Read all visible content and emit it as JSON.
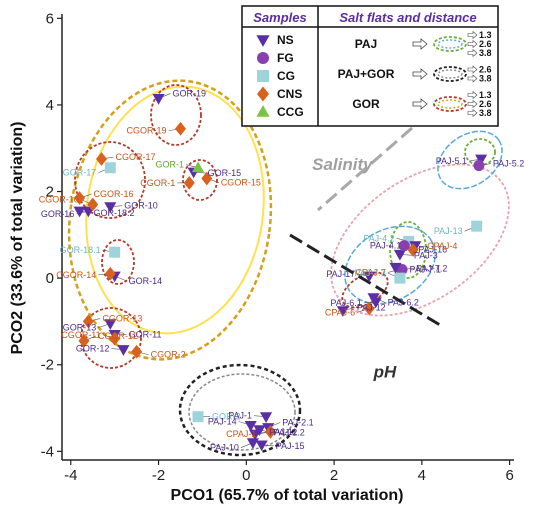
{
  "chart_data": {
    "type": "scatter",
    "xlabel": "PCO1 (65.7% of total variation)",
    "ylabel": "PCO2 (33.6% of total variation)",
    "xlim": [
      -4.2,
      6.1
    ],
    "ylim": [
      -4.2,
      6.1
    ],
    "xticks": [
      -4,
      -2,
      0,
      2,
      4,
      6
    ],
    "yticks": [
      -4,
      -2,
      0,
      2,
      4,
      6
    ],
    "xtick_labels": [
      "-4",
      "-2",
      "0",
      "2",
      "4",
      "6"
    ],
    "ytick_labels": [
      "-4",
      "-2",
      "0",
      "2",
      "4",
      "6"
    ],
    "grid": false,
    "legend": {
      "samples_title": "Samples",
      "groups_title": "Salt flats and distance",
      "samples": [
        {
          "code": "NS",
          "shape": "triangle-down",
          "color": "#5a2fa6"
        },
        {
          "code": "FG",
          "shape": "circle",
          "color": "#8a3fb0"
        },
        {
          "code": "CG",
          "shape": "square",
          "color": "#9fd3dc"
        },
        {
          "code": "CNS",
          "shape": "diamond",
          "color": "#d8611e"
        },
        {
          "code": "CCG",
          "shape": "triangle-up",
          "color": "#7cc341"
        }
      ],
      "groups": [
        {
          "name": "PAJ",
          "distances": [
            "1.3",
            "2.6",
            "3.8"
          ]
        },
        {
          "name": "PAJ+GOR",
          "distances": [
            "2.6",
            "3.8"
          ]
        },
        {
          "name": "GOR",
          "distances": [
            "1.3",
            "2.6",
            "3.8"
          ]
        }
      ]
    },
    "annotations": [
      {
        "text": "Salinity",
        "x": 1.5,
        "y": 2.5,
        "color": "#a0a0a0"
      },
      {
        "text": "pH",
        "x": 2.9,
        "y": -2.3,
        "color": "#333333"
      }
    ],
    "points": [
      {
        "label": "GOR-19",
        "x": -2.0,
        "y": 4.15,
        "shape": "triangle-down",
        "color": "#5a2fa6"
      },
      {
        "label": "CGOR-19",
        "x": -1.5,
        "y": 3.45,
        "shape": "diamond",
        "color": "#d8611e"
      },
      {
        "label": "CGOR-17",
        "x": -3.3,
        "y": 2.75,
        "shape": "diamond",
        "color": "#d8611e"
      },
      {
        "label": "GOR-17",
        "x": -3.1,
        "y": 2.55,
        "shape": "square",
        "color": "#9fd3dc"
      },
      {
        "label": "GOR-15",
        "x": -1.2,
        "y": 2.45,
        "shape": "triangle-down",
        "color": "#5a2fa6"
      },
      {
        "label": "GOR-1",
        "x": -1.1,
        "y": 2.55,
        "shape": "triangle-up",
        "color": "#7cc341"
      },
      {
        "label": "CGOR-15",
        "x": -0.9,
        "y": 2.3,
        "shape": "diamond",
        "color": "#d8611e"
      },
      {
        "label": "CGOR-1",
        "x": -1.3,
        "y": 2.2,
        "shape": "diamond",
        "color": "#d8611e"
      },
      {
        "label": "CGOR-16",
        "x": -3.8,
        "y": 1.85,
        "shape": "diamond",
        "color": "#d8611e"
      },
      {
        "label": "GOR-16",
        "x": -3.6,
        "y": 1.55,
        "shape": "triangle-down",
        "color": "#5a2fa6"
      },
      {
        "label": "GOR-10",
        "x": -3.1,
        "y": 1.65,
        "shape": "triangle-down",
        "color": "#5a2fa6"
      },
      {
        "label": "CGOR-10",
        "x": -3.5,
        "y": 1.7,
        "shape": "diamond",
        "color": "#d8611e"
      },
      {
        "label": "GOR-18.2",
        "x": -3.8,
        "y": 1.55,
        "shape": "triangle-down",
        "color": "#5a2fa6"
      },
      {
        "label": "GOR-18.1",
        "x": -3.0,
        "y": 0.6,
        "shape": "square",
        "color": "#9fd3dc"
      },
      {
        "label": "GOR-14",
        "x": -3.0,
        "y": 0.05,
        "shape": "triangle-down",
        "color": "#5a2fa6"
      },
      {
        "label": "CGOR-14",
        "x": -3.1,
        "y": 0.1,
        "shape": "diamond",
        "color": "#d8611e"
      },
      {
        "label": "CGOR-13",
        "x": -3.6,
        "y": -1.0,
        "shape": "diamond",
        "color": "#d8611e"
      },
      {
        "label": "GOR-13",
        "x": -3.1,
        "y": -1.05,
        "shape": "triangle-down",
        "color": "#5a2fa6"
      },
      {
        "label": "GOR-11",
        "x": -3.0,
        "y": -1.3,
        "shape": "triangle-down",
        "color": "#5a2fa6"
      },
      {
        "label": "CGOR-11",
        "x": -3.0,
        "y": -1.4,
        "shape": "diamond",
        "color": "#d8611e"
      },
      {
        "label": "CGOR-2",
        "x": -2.5,
        "y": -1.7,
        "shape": "diamond",
        "color": "#d8611e"
      },
      {
        "label": "GOR-12",
        "x": -2.8,
        "y": -1.65,
        "shape": "triangle-down",
        "color": "#5a2fa6"
      },
      {
        "label": "CGOR-12",
        "x": -3.7,
        "y": -1.45,
        "shape": "diamond",
        "color": "#d8611e"
      },
      {
        "label": "PAJ-5.1",
        "x": 5.35,
        "y": 2.75,
        "shape": "triangle-down",
        "color": "#5a2fa6"
      },
      {
        "label": "PAJ-5.2",
        "x": 5.3,
        "y": 2.6,
        "shape": "circle",
        "color": "#8a3fb0"
      },
      {
        "label": "PAJ-13",
        "x": 5.25,
        "y": 1.2,
        "shape": "square",
        "color": "#9fd3dc"
      },
      {
        "label": "PAJ-3",
        "x": 3.5,
        "y": 0.55,
        "shape": "triangle-down",
        "color": "#5a2fa6"
      },
      {
        "label": "PAJ-4.2",
        "x": 3.7,
        "y": 0.85,
        "shape": "square",
        "color": "#9fd3dc"
      },
      {
        "label": "PAJ-16",
        "x": 3.6,
        "y": 0.75,
        "shape": "circle",
        "color": "#8a3fb0"
      },
      {
        "label": "PAJ-4.1",
        "x": 3.85,
        "y": 0.75,
        "shape": "triangle-down",
        "color": "#5a2fa6"
      },
      {
        "label": "CPAJ-4",
        "x": 3.8,
        "y": 0.65,
        "shape": "diamond",
        "color": "#d8611e"
      },
      {
        "label": "CPAJ-7",
        "x": 3.5,
        "y": 0.2,
        "shape": "diamond",
        "color": "#d8611e"
      },
      {
        "label": "PAJ-7.2",
        "x": 3.55,
        "y": 0.2,
        "shape": "circle",
        "color": "#8a3fb0"
      },
      {
        "label": "PAJ-7.3",
        "x": 3.5,
        "y": 0.0,
        "shape": "square",
        "color": "#9fd3dc"
      },
      {
        "label": "PAJ-7.1",
        "x": 3.4,
        "y": 0.25,
        "shape": "triangle-down",
        "color": "#5a2fa6"
      },
      {
        "label": "PAJ-17",
        "x": 2.8,
        "y": 0.05,
        "shape": "triangle-down",
        "color": "#5a2fa6"
      },
      {
        "label": "PAJ-6.2",
        "x": 2.9,
        "y": -0.45,
        "shape": "triangle-down",
        "color": "#5a2fa6"
      },
      {
        "label": "PAJ-6.1",
        "x": 2.95,
        "y": -0.55,
        "shape": "triangle-down",
        "color": "#5a2fa6"
      },
      {
        "label": "PAJ-12",
        "x": 2.2,
        "y": -0.75,
        "shape": "triangle-down",
        "color": "#5a2fa6"
      },
      {
        "label": "CPAJ-6",
        "x": 2.8,
        "y": -0.7,
        "shape": "diamond",
        "color": "#d8611e"
      },
      {
        "label": "GOR-2",
        "x": -1.1,
        "y": -3.2,
        "shape": "square",
        "color": "#9fd3dc"
      },
      {
        "label": "PAJ-14",
        "x": 0.1,
        "y": -3.4,
        "shape": "triangle-down",
        "color": "#5a2fa6"
      },
      {
        "label": "PAJ-2.2",
        "x": 0.3,
        "y": -3.5,
        "shape": "triangle-down",
        "color": "#5a2fa6"
      },
      {
        "label": "PAJ-1",
        "x": 0.45,
        "y": -3.2,
        "shape": "triangle-down",
        "color": "#5a2fa6"
      },
      {
        "label": "PAJ-2.1",
        "x": 0.5,
        "y": -3.45,
        "shape": "triangle-down",
        "color": "#5a2fa6"
      },
      {
        "label": "CPAJ-1",
        "x": 0.55,
        "y": -3.55,
        "shape": "diamond",
        "color": "#d8611e"
      },
      {
        "label": "PAJ-11",
        "x": 0.2,
        "y": -3.6,
        "shape": "triangle-down",
        "color": "#5a2fa6"
      },
      {
        "label": "PAJ-10",
        "x": 0.15,
        "y": -3.8,
        "shape": "triangle-down",
        "color": "#5a2fa6"
      },
      {
        "label": "PAJ-15",
        "x": 0.35,
        "y": -3.85,
        "shape": "triangle-down",
        "color": "#5a2fa6"
      }
    ]
  }
}
